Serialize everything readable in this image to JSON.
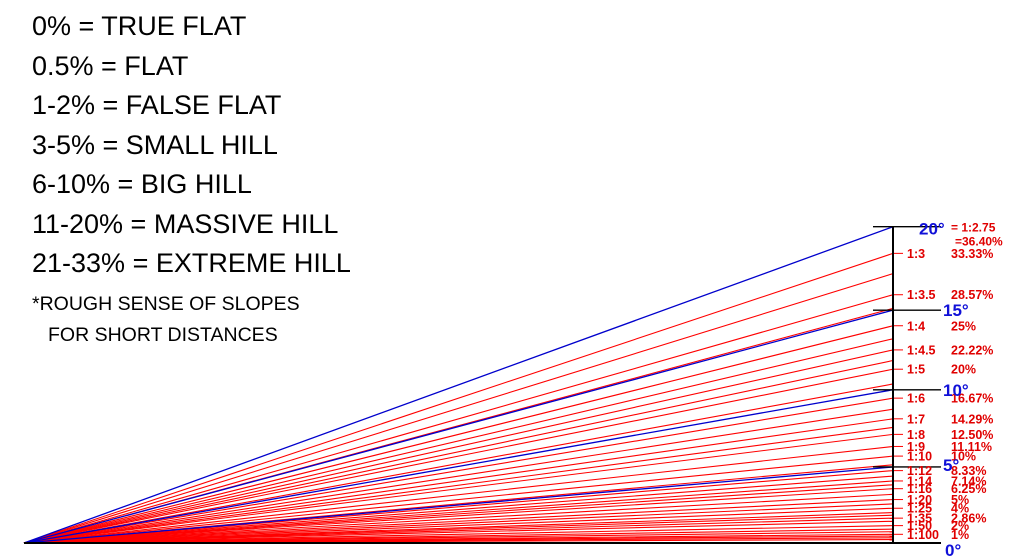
{
  "legend": {
    "rules": [
      {
        "text": "0% = TRUE FLAT"
      },
      {
        "text": "0.5% = FLAT"
      },
      {
        "text": "1-2% = FALSE FLAT"
      },
      {
        "text": "3-5% = SMALL HILL"
      },
      {
        "text": "6-10% = BIG HILL"
      },
      {
        "text": "11-20% = MASSIVE HILL"
      },
      {
        "text": "21-33% = EXTREME HILL"
      }
    ],
    "note_line1": "*ROUGH SENSE OF SLOPES",
    "note_line2": "FOR SHORT DISTANCES"
  },
  "colors": {
    "slope_line": "#ff0000",
    "slope_text": "#e00000",
    "degree_line": "#0000cc",
    "degree_text": "#1010d8",
    "axis": "#000000"
  },
  "slopes": [
    {
      "ratio": "1:3",
      "percent": "33.33%",
      "value": 33.33
    },
    {
      "ratio": "1:3.5",
      "percent": "28.57%",
      "value": 28.57
    },
    {
      "ratio": "1:4",
      "percent": "25%",
      "value": 25
    },
    {
      "ratio": "1:4.5",
      "percent": "22.22%",
      "value": 22.22
    },
    {
      "ratio": "1:5",
      "percent": "20%",
      "value": 20
    },
    {
      "ratio": "1:6",
      "percent": "16.67%",
      "value": 16.67
    },
    {
      "ratio": "1:7",
      "percent": "14.29%",
      "value": 14.29
    },
    {
      "ratio": "1:8",
      "percent": "12.50%",
      "value": 12.5
    },
    {
      "ratio": "1:9",
      "percent": "11.11%",
      "value": 11.11
    },
    {
      "ratio": "1:10",
      "percent": "10%",
      "value": 10
    },
    {
      "ratio": "1:12",
      "percent": "8.33%",
      "value": 8.33
    },
    {
      "ratio": "1:14",
      "percent": "7.14%",
      "value": 7.14
    },
    {
      "ratio": "1:16",
      "percent": "6.25%",
      "value": 6.25
    },
    {
      "ratio": "1:20",
      "percent": "5%",
      "value": 5
    },
    {
      "ratio": "1:25",
      "percent": "4%",
      "value": 4
    },
    {
      "ratio": "1:35",
      "percent": "2.86%",
      "value": 2.86
    },
    {
      "ratio": "1:50",
      "percent": "2%",
      "value": 2
    },
    {
      "ratio": "1:100",
      "percent": "1%",
      "value": 1
    }
  ],
  "unlabeled_slope_values": [
    31,
    27,
    23.5,
    21,
    18.3,
    15.4,
    13.3,
    9,
    7.7,
    6.7,
    5.6,
    4.5,
    3.5,
    3.2,
    2.5,
    1.6,
    1.3,
    0.8,
    0.6,
    0.4
  ],
  "degrees": [
    {
      "label": "20°",
      "angle": 20,
      "extra1": "= 1:2.75",
      "extra2": "=36.40%"
    },
    {
      "label": "15°",
      "angle": 15
    },
    {
      "label": "10°",
      "angle": 10
    },
    {
      "label": "5°",
      "angle": 5
    },
    {
      "label": "0°",
      "angle": 0
    }
  ]
}
